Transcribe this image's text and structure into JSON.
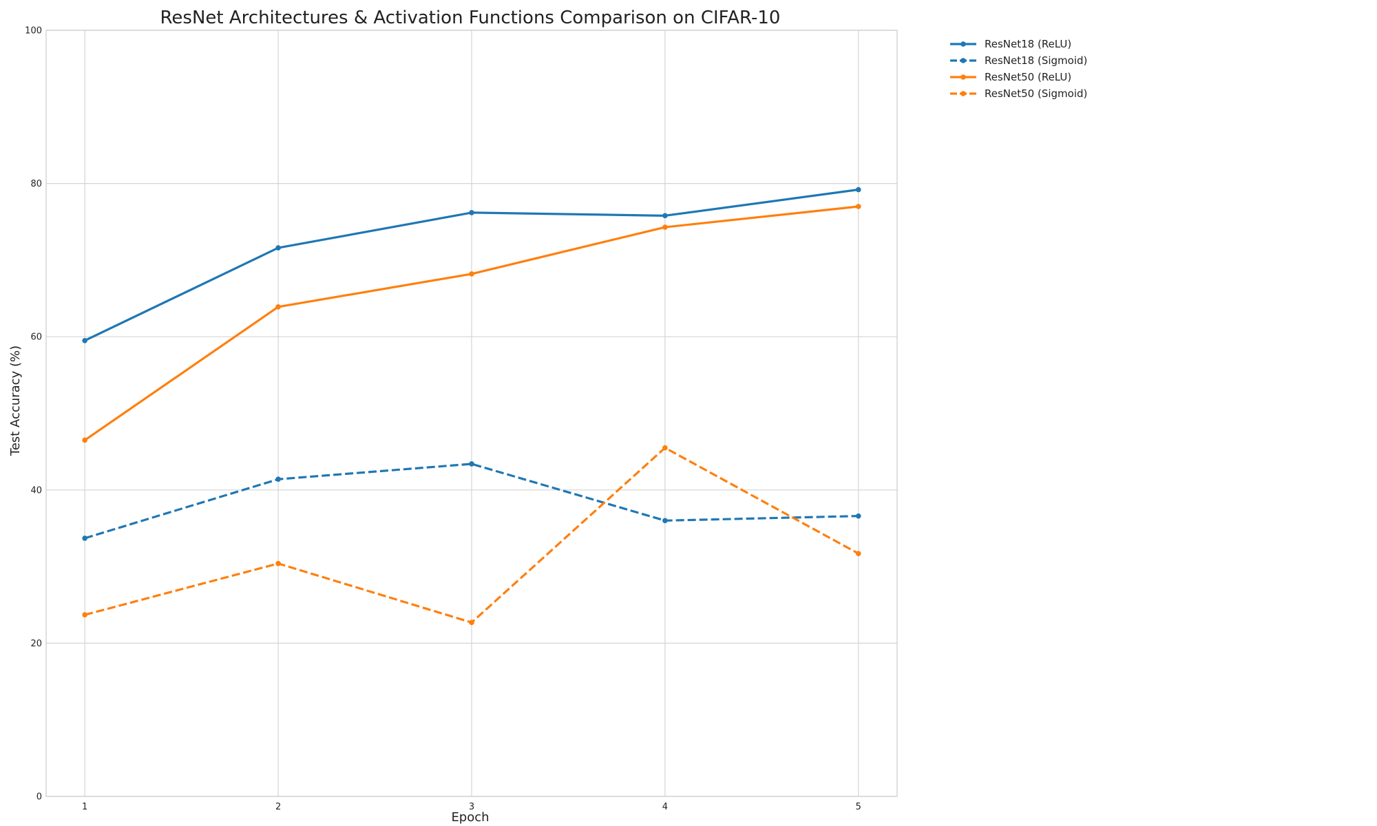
{
  "chart_data": {
    "type": "line",
    "title": "ResNet Architectures & Activation Functions Comparison on CIFAR-10",
    "xlabel": "Epoch",
    "ylabel": "Test Accuracy (%)",
    "x": [
      1,
      2,
      3,
      4,
      5
    ],
    "xlim": [
      0.8,
      5.2
    ],
    "ylim": [
      0,
      100
    ],
    "x_ticks": [
      "1",
      "2",
      "3",
      "4",
      "5"
    ],
    "y_ticks": [
      "0",
      "20",
      "40",
      "60",
      "80",
      "100"
    ],
    "grid": true,
    "legend_position": "outside-top-right",
    "series": [
      {
        "name": "ResNet18 (ReLU)",
        "values": [
          59.5,
          71.6,
          76.2,
          75.8,
          79.2
        ],
        "color": "#1f77b4",
        "linestyle": "solid",
        "marker": "circle"
      },
      {
        "name": "ResNet18 (Sigmoid)",
        "values": [
          33.7,
          41.4,
          43.4,
          36.0,
          36.6
        ],
        "color": "#1f77b4",
        "linestyle": "dashed",
        "marker": "circle"
      },
      {
        "name": "ResNet50 (ReLU)",
        "values": [
          46.5,
          63.9,
          68.2,
          74.3,
          77.0
        ],
        "color": "#ff7f0e",
        "linestyle": "solid",
        "marker": "circle"
      },
      {
        "name": "ResNet50 (Sigmoid)",
        "values": [
          23.7,
          30.4,
          22.7,
          45.5,
          31.7
        ],
        "color": "#ff7f0e",
        "linestyle": "dashed",
        "marker": "circle"
      }
    ]
  }
}
